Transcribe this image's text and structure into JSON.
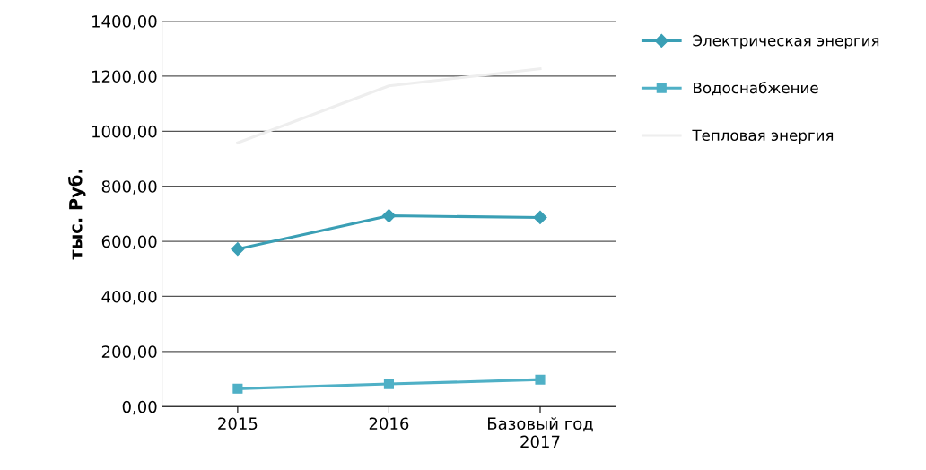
{
  "chart_data": {
    "type": "line",
    "ylabel": "тыс. Руб.",
    "categories": [
      "2015",
      "2016",
      "Базовый год\n2017"
    ],
    "series": [
      {
        "name": "Электрическая энергия",
        "color": "#3a9fb5",
        "marker": "diamond",
        "values": [
          572,
          693,
          687
        ]
      },
      {
        "name": "Водоснабжение",
        "color": "#4fb0c6",
        "marker": "square",
        "values": [
          65,
          82,
          98
        ]
      },
      {
        "name": "Тепловая энергия",
        "color": "#eeeeee",
        "marker": "none",
        "values": [
          958,
          1165,
          1227
        ]
      }
    ],
    "ylim": [
      0,
      1400
    ],
    "yticks": [
      {
        "value": 0,
        "label": "0,00"
      },
      {
        "value": 200,
        "label": "200,00"
      },
      {
        "value": 400,
        "label": "400,00"
      },
      {
        "value": 600,
        "label": "600,00"
      },
      {
        "value": 800,
        "label": "800,00"
      },
      {
        "value": 1000,
        "label": "1000,00"
      },
      {
        "value": 1200,
        "label": "1200,00"
      },
      {
        "value": 1400,
        "label": "1400,00"
      }
    ],
    "grid": "y",
    "legend": "right"
  }
}
